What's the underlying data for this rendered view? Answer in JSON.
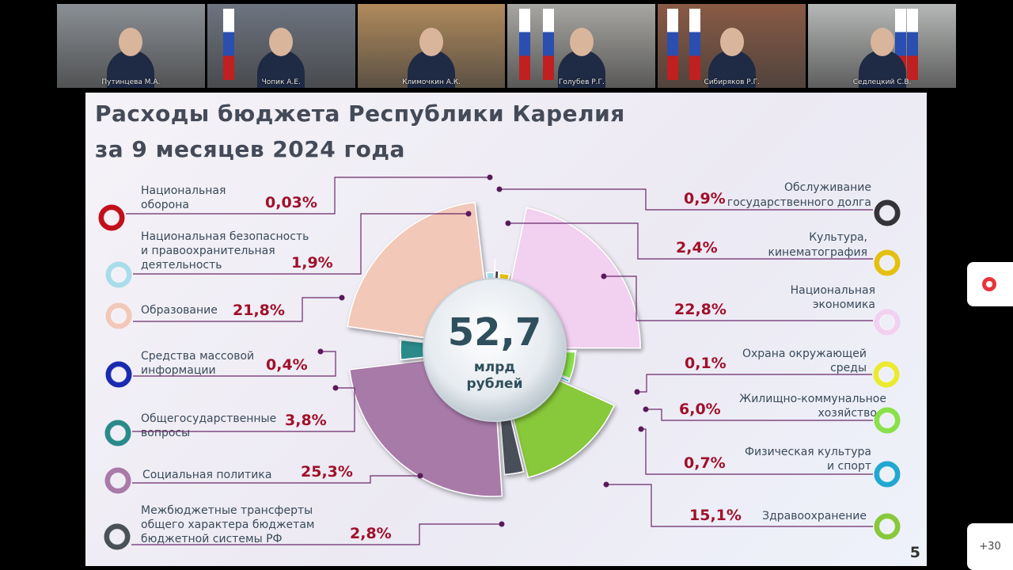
{
  "video_tiles": [
    {
      "name": "Путинцева М.А.",
      "bg": "#8a8f94"
    },
    {
      "name": "Чопик А.Е.",
      "bg": "#6d7480"
    },
    {
      "name": "Климочкин А.К.",
      "bg": "#b08a5c"
    },
    {
      "name": "Голубев Р.Г.",
      "bg": "#a7a6a2"
    },
    {
      "name": "Сибиряков Р.Г.",
      "bg": "#8a5a45"
    },
    {
      "name": "Седлецкий С.В.",
      "bg": "#b5b8b6"
    }
  ],
  "slide": {
    "title_line1": "Расходы бюджета Республики Карелия",
    "title_line2": "за 9 месяцев 2024 года",
    "page_number": "5"
  },
  "chart_data": {
    "type": "pie",
    "center_value": "52,7",
    "center_unit_line1": "млрд",
    "center_unit_line2": "рублей",
    "slices": [
      {
        "label": "Национальная оборона",
        "value": 0.03,
        "value_label": "0,03%",
        "color": "#c0101c"
      },
      {
        "label": "Обслуживание государственного долга",
        "value": 0.9,
        "value_label": "0,9%",
        "color": "#333338"
      },
      {
        "label": "Культура, кинематография",
        "value": 2.4,
        "value_label": "2,4%",
        "color": "#e3c010"
      },
      {
        "label": "Национальная экономика",
        "value": 22.8,
        "value_label": "22,8%",
        "color": "#f2d0f0"
      },
      {
        "label": "Охрана окружающей среды",
        "value": 0.1,
        "value_label": "0,1%",
        "color": "#eaea30"
      },
      {
        "label": "Жилищно-коммунальное хозяйство",
        "value": 6.0,
        "value_label": "6,0%",
        "color": "#8ae04a"
      },
      {
        "label": "Физическая культура и спорт",
        "value": 0.7,
        "value_label": "0,7%",
        "color": "#20a8d0"
      },
      {
        "label": "Здравоохранение",
        "value": 15.1,
        "value_label": "15,1%",
        "color": "#88c83a"
      },
      {
        "label": "Межбюджетные трансферты общего характера бюджетам бюджетной системы РФ",
        "value": 2.8,
        "value_label": "2,8%",
        "color": "#4a5058"
      },
      {
        "label": "Социальная политика",
        "value": 25.3,
        "value_label": "25,3%",
        "color": "#a87aa8"
      },
      {
        "label": "Общегосударственные вопросы",
        "value": 3.8,
        "value_label": "3,8%",
        "color": "#2a8a8a"
      },
      {
        "label": "Средства массовой информации",
        "value": 0.4,
        "value_label": "0,4%",
        "color": "#1a2ab0"
      },
      {
        "label": "Образование",
        "value": 21.8,
        "value_label": "21,8%",
        "color": "#f2c8b8"
      },
      {
        "label": "Национальная безопасность и правоохранительная деятельность",
        "value": 1.9,
        "value_label": "1,9%",
        "color": "#a8dcea"
      }
    ]
  },
  "right_controls": {
    "more_participants": "+30"
  }
}
